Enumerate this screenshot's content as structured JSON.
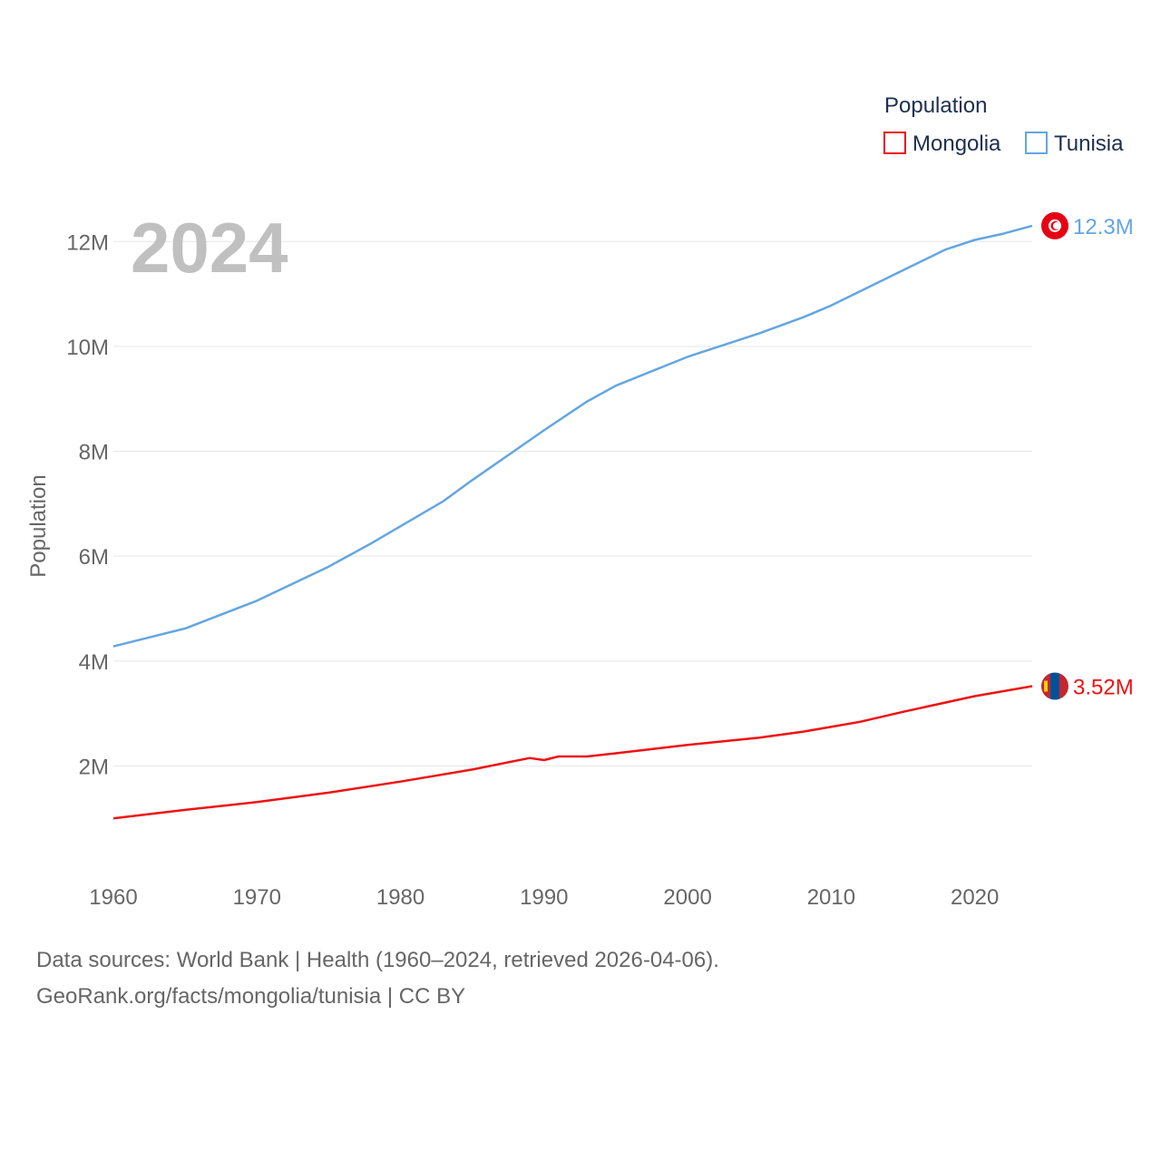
{
  "chart_data": {
    "type": "line",
    "title": "",
    "current_year": "2024",
    "xlabel": "",
    "ylabel": "Population",
    "xlim": [
      1960,
      2024
    ],
    "ylim": [
      0,
      12800000
    ],
    "x_ticks": [
      1960,
      1970,
      1980,
      1990,
      2000,
      2010,
      2020
    ],
    "x_tick_labels": [
      "1960",
      "1970",
      "1980",
      "1990",
      "2000",
      "2010",
      "2020"
    ],
    "y_ticks": [
      2000000,
      4000000,
      6000000,
      8000000,
      10000000,
      12000000
    ],
    "y_tick_labels": [
      "2M",
      "4M",
      "6M",
      "8M",
      "10M",
      "12M"
    ],
    "grid": true,
    "legend": {
      "title": "Population",
      "position": "top-right"
    },
    "series": [
      {
        "name": "Mongolia",
        "color": "#ee1111",
        "end_label": "3.52M",
        "flag_icon": "mongolia-flag-icon",
        "points": [
          [
            1960,
            1000000
          ],
          [
            1965,
            1160000
          ],
          [
            1970,
            1310000
          ],
          [
            1975,
            1490000
          ],
          [
            1980,
            1700000
          ],
          [
            1985,
            1930000
          ],
          [
            1989,
            2150000
          ],
          [
            1990,
            2110000
          ],
          [
            1991,
            2180000
          ],
          [
            1993,
            2180000
          ],
          [
            1995,
            2240000
          ],
          [
            2000,
            2400000
          ],
          [
            2005,
            2540000
          ],
          [
            2008,
            2650000
          ],
          [
            2012,
            2840000
          ],
          [
            2015,
            3030000
          ],
          [
            2020,
            3330000
          ],
          [
            2024,
            3520000
          ]
        ]
      },
      {
        "name": "Tunisia",
        "color": "#64a6e0",
        "end_label": "12.3M",
        "flag_icon": "tunisia-flag-icon",
        "points": [
          [
            1960,
            4280000
          ],
          [
            1965,
            4620000
          ],
          [
            1970,
            5150000
          ],
          [
            1975,
            5800000
          ],
          [
            1978,
            6250000
          ],
          [
            1983,
            7050000
          ],
          [
            1985,
            7450000
          ],
          [
            1990,
            8400000
          ],
          [
            1993,
            8950000
          ],
          [
            1995,
            9250000
          ],
          [
            2000,
            9800000
          ],
          [
            2005,
            10250000
          ],
          [
            2008,
            10550000
          ],
          [
            2010,
            10780000
          ],
          [
            2015,
            11450000
          ],
          [
            2018,
            11850000
          ],
          [
            2020,
            12030000
          ],
          [
            2022,
            12150000
          ],
          [
            2024,
            12300000
          ]
        ]
      }
    ]
  },
  "footer": {
    "source_line": "Data sources: World Bank | Health (1960–2024, retrieved 2026-04-06).",
    "license_line": "GeoRank.org/facts/mongolia/tunisia | CC BY"
  }
}
